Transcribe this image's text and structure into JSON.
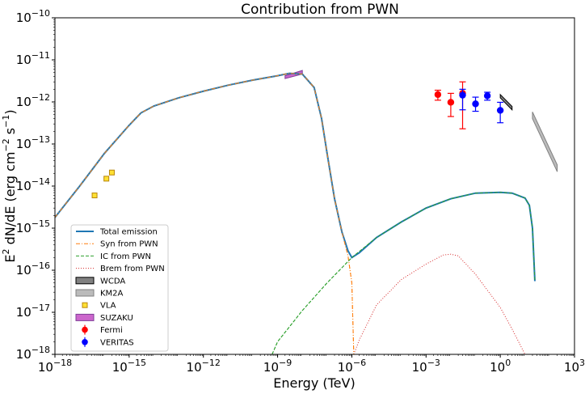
{
  "chart_data": {
    "type": "line",
    "title": "Contribution from PWN",
    "xlabel": "Energy (TeV)",
    "ylabel_parts": [
      "E",
      "2",
      " dN/dE (erg cm",
      "−2",
      " s",
      "−1",
      ")"
    ],
    "xscale": "log",
    "yscale": "log",
    "xlim": [
      1e-18,
      1000
    ],
    "ylim": [
      1e-18,
      1e-10
    ],
    "x_ticks": [
      {
        "value": 1e-18,
        "base": "10",
        "exp": "−18"
      },
      {
        "value": 1e-15,
        "base": "10",
        "exp": "−15"
      },
      {
        "value": 1e-12,
        "base": "10",
        "exp": "−12"
      },
      {
        "value": 1e-09,
        "base": "10",
        "exp": "−9"
      },
      {
        "value": 1e-06,
        "base": "10",
        "exp": "−6"
      },
      {
        "value": 0.001,
        "base": "10",
        "exp": "−3"
      },
      {
        "value": 1,
        "base": "10",
        "exp": "0"
      },
      {
        "value": 1000,
        "base": "10",
        "exp": "3"
      }
    ],
    "y_ticks": [
      {
        "value": 1e-18,
        "base": "10",
        "exp": "−18"
      },
      {
        "value": 1e-17,
        "base": "10",
        "exp": "−17"
      },
      {
        "value": 1e-16,
        "base": "10",
        "exp": "−16"
      },
      {
        "value": 1e-15,
        "base": "10",
        "exp": "−15"
      },
      {
        "value": 1e-14,
        "base": "10",
        "exp": "−14"
      },
      {
        "value": 1e-13,
        "base": "10",
        "exp": "−13"
      },
      {
        "value": 1e-12,
        "base": "10",
        "exp": "−12"
      },
      {
        "value": 1e-11,
        "base": "10",
        "exp": "−11"
      },
      {
        "value": 1e-10,
        "base": "10",
        "exp": "−10"
      }
    ],
    "grid": false,
    "legend_position": "lower-left",
    "series": [
      {
        "name": "Total emission",
        "kind": "line",
        "color": "#1f77b4",
        "dash": "solid",
        "x": [
          1e-18,
          1e-17,
          1e-16,
          1e-15,
          3e-15,
          1e-14,
          1e-13,
          1e-12,
          1e-11,
          1e-10,
          1e-09,
          3e-09,
          1e-08,
          3e-08,
          6e-08,
          1e-07,
          2e-07,
          4e-07,
          7e-07,
          1e-06,
          2e-06,
          1e-05,
          0.0001,
          0.001,
          0.01,
          0.1,
          1,
          3,
          10,
          15,
          20,
          25
        ],
        "y": [
          1.8e-15,
          1e-14,
          6e-14,
          2.8e-13,
          5.5e-13,
          8e-13,
          1.25e-12,
          1.8e-12,
          2.5e-12,
          3.3e-12,
          4.2e-12,
          4.8e-12,
          4.6e-12,
          2.2e-12,
          4e-13,
          6e-14,
          5e-15,
          8e-16,
          2.9e-16,
          2e-16,
          2.6e-16,
          6e-16,
          1.4e-15,
          3e-15,
          5e-15,
          6.8e-15,
          7.1e-15,
          6.8e-15,
          5.2e-15,
          3.5e-15,
          1e-15,
          5.5e-17
        ]
      },
      {
        "name": "Syn from PWN",
        "kind": "line",
        "color": "#ff7f0e",
        "dash": "dashdot",
        "x": [
          1e-18,
          1e-17,
          1e-16,
          1e-15,
          3e-15,
          1e-14,
          1e-13,
          1e-12,
          1e-11,
          1e-10,
          1e-09,
          3e-09,
          1e-08,
          3e-08,
          6e-08,
          1e-07,
          2e-07,
          4e-07,
          7e-07,
          1e-06,
          1.2e-06
        ],
        "y": [
          1.8e-15,
          1e-14,
          6e-14,
          2.8e-13,
          5.5e-13,
          8e-13,
          1.25e-12,
          1.8e-12,
          2.5e-12,
          3.3e-12,
          4.2e-12,
          4.8e-12,
          4.6e-12,
          2.2e-12,
          4e-13,
          6e-14,
          5e-15,
          8e-16,
          2.2e-16,
          5e-17,
          1e-18
        ]
      },
      {
        "name": "IC from PWN",
        "kind": "line",
        "color": "#2ca02c",
        "dash": "dashed",
        "x": [
          6e-10,
          1e-09,
          1e-08,
          1e-07,
          1e-06,
          1e-05,
          0.0001,
          0.001,
          0.01,
          0.1,
          1,
          3,
          10,
          15,
          20,
          25
        ],
        "y": [
          1e-18,
          2e-18,
          1.1e-17,
          5e-17,
          2e-16,
          6e-16,
          1.4e-15,
          3e-15,
          5e-15,
          6.8e-15,
          7.1e-15,
          6.8e-15,
          5.2e-15,
          3.5e-15,
          1e-15,
          5.5e-17
        ]
      },
      {
        "name": "Brem from PWN",
        "kind": "line",
        "color": "#d62728",
        "dash": "dotted",
        "x": [
          1.2e-06,
          2e-06,
          1e-05,
          0.0001,
          0.001,
          0.005,
          0.01,
          0.02,
          0.1,
          1,
          3,
          10
        ],
        "y": [
          1e-18,
          2.2e-18,
          1.5e-17,
          6e-17,
          1.4e-16,
          2.3e-16,
          2.4e-16,
          2.2e-16,
          8e-17,
          1.3e-17,
          4e-18,
          1e-18
        ]
      }
    ],
    "bands": [
      {
        "name": "WCDA",
        "color": "#808080",
        "edge": "#000000",
        "x": [
          1,
          3
        ],
        "y_low": [
          1.25e-12,
          6.5e-13
        ],
        "y_high": [
          1.5e-12,
          7.8e-13
        ]
      },
      {
        "name": "KM2A",
        "color": "#bbbbbb",
        "edge": "#808080",
        "x": [
          20,
          200
        ],
        "y_low": [
          4e-13,
          2.2e-14
        ],
        "y_high": [
          5.8e-13,
          3.2e-14
        ]
      },
      {
        "name": "SUZAKU",
        "color": "#cc66cc",
        "edge": "#7f3f98",
        "x": [
          2e-09,
          1e-08
        ],
        "y_low": [
          3.6e-12,
          4.6e-12
        ],
        "y_high": [
          4.2e-12,
          5.6e-12
        ]
      }
    ],
    "points": [
      {
        "name": "VLA",
        "kind": "square",
        "color": "#ffe033",
        "edge": "#b8860b",
        "x": [
          4e-17,
          1.2e-16,
          2e-16
        ],
        "y": [
          6e-15,
          1.5e-14,
          2.1e-14
        ]
      },
      {
        "name": "Fermi",
        "kind": "errorbar",
        "color": "#ff0000",
        "x": [
          0.003,
          0.01,
          0.03
        ],
        "y": [
          1.5e-12,
          9.8e-13,
          1.6e-12
        ],
        "y_err_low": [
          1.1e-12,
          4.5e-13,
          2.3e-13
        ],
        "y_err_high": [
          1.9e-12,
          1.6e-12,
          3e-12
        ]
      },
      {
        "name": "VERITAS",
        "kind": "errorbar",
        "color": "#0000ff",
        "x": [
          0.03,
          0.1,
          0.3,
          1
        ],
        "y": [
          1.45e-12,
          9e-13,
          1.4e-12,
          6.3e-13
        ],
        "y_err_low": [
          6.5e-13,
          6e-13,
          1.1e-12,
          3.2e-13
        ],
        "y_err_high": [
          2e-12,
          1.3e-12,
          1.7e-12,
          9.8e-13
        ]
      }
    ],
    "legend": [
      "Total emission",
      "Syn from PWN",
      "IC from PWN",
      "Brem from PWN",
      "WCDA",
      "KM2A",
      "VLA",
      "SUZAKU",
      "Fermi",
      "VERITAS"
    ]
  }
}
